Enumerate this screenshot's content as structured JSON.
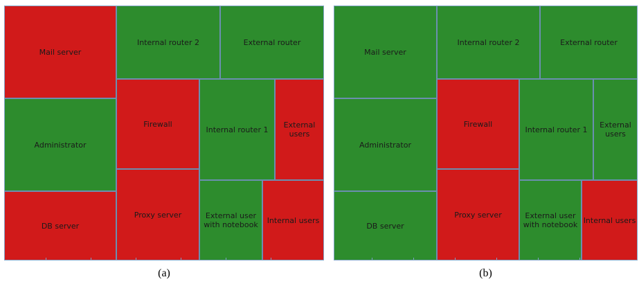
{
  "colors": {
    "compromised": "#d11a1a",
    "safe": "#2d8c2d",
    "border": "#6b8fb0"
  },
  "panels": [
    {
      "caption": "(a)",
      "cells": [
        {
          "label": "Mail server",
          "status": "red"
        },
        {
          "label": "Internal router 2",
          "status": "green"
        },
        {
          "label": "External router",
          "status": "green"
        },
        {
          "label": "Administrator",
          "status": "green"
        },
        {
          "label": "Firewall",
          "status": "red"
        },
        {
          "label": "Internal router 1",
          "status": "green"
        },
        {
          "label": "External\nusers",
          "status": "red"
        },
        {
          "label": "DB server",
          "status": "red"
        },
        {
          "label": "Proxy server",
          "status": "red"
        },
        {
          "label": "External user\nwith notebook",
          "status": "green"
        },
        {
          "label": "Internal users",
          "status": "red"
        }
      ]
    },
    {
      "caption": "(b)",
      "cells": [
        {
          "label": "Mail server",
          "status": "green"
        },
        {
          "label": "Internal router 2",
          "status": "green"
        },
        {
          "label": "External router",
          "status": "green"
        },
        {
          "label": "Administrator",
          "status": "green"
        },
        {
          "label": "Firewall",
          "status": "red"
        },
        {
          "label": "Internal router 1",
          "status": "green"
        },
        {
          "label": "External\nusers",
          "status": "green"
        },
        {
          "label": "DB server",
          "status": "green"
        },
        {
          "label": "Proxy server",
          "status": "red"
        },
        {
          "label": "External user\nwith notebook",
          "status": "green"
        },
        {
          "label": "Internal users",
          "status": "red"
        }
      ]
    }
  ]
}
